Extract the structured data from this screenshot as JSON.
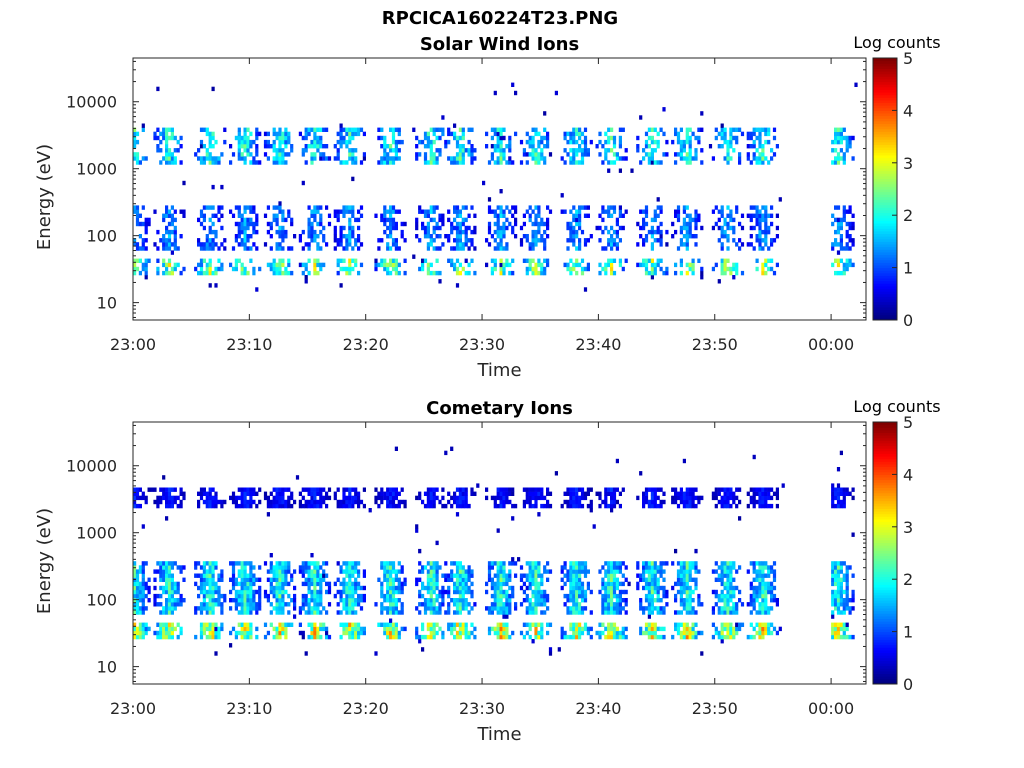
{
  "figure": {
    "title": "RPCICA160224T23.PNG"
  },
  "chart_data": [
    {
      "type": "heatmap",
      "title": "Solar Wind Ions",
      "xlabel": "Time",
      "ylabel": "Energy (eV)",
      "y_scale": "log",
      "ylim": [
        5.5,
        45000
      ],
      "x_range_minutes": [
        0,
        63
      ],
      "x_ticks": [
        {
          "label": "23:00",
          "minute": 0
        },
        {
          "label": "23:10",
          "minute": 10
        },
        {
          "label": "23:20",
          "minute": 20
        },
        {
          "label": "23:30",
          "minute": 30
        },
        {
          "label": "23:40",
          "minute": 40
        },
        {
          "label": "23:50",
          "minute": 50
        },
        {
          "label": "00:00",
          "minute": 60
        }
      ],
      "y_ticks": [
        {
          "label": "10",
          "value": 10
        },
        {
          "label": "100",
          "value": 100
        },
        {
          "label": "1000",
          "value": 1000
        },
        {
          "label": "10000",
          "value": 10000
        }
      ],
      "colorbar": {
        "label": "Log counts",
        "range": [
          0,
          5
        ],
        "ticks": [
          "0",
          "1",
          "2",
          "3",
          "4",
          "5"
        ],
        "colormap": "jet"
      },
      "data_gap_minutes": [
        56,
        60
      ],
      "bursts": [
        0,
        3,
        6.5,
        9.5,
        12.5,
        15.5,
        18.5,
        22,
        25.5,
        28,
        31.5,
        34.5,
        38,
        41,
        44.5,
        47.5,
        51,
        54,
        60.5
      ],
      "features": [
        {
          "energy_range_eV": [
            1200,
            4000
          ],
          "peak_log_counts": 2.2,
          "description": "high-energy solar wind band"
        },
        {
          "energy_range_eV": [
            60,
            300
          ],
          "peak_log_counts": 1.5
        },
        {
          "energy_range_eV": [
            25,
            45
          ],
          "peak_log_counts": 2.8
        }
      ]
    },
    {
      "type": "heatmap",
      "title": "Cometary Ions",
      "xlabel": "Time",
      "ylabel": "Energy (eV)",
      "y_scale": "log",
      "ylim": [
        5.5,
        45000
      ],
      "x_range_minutes": [
        0,
        63
      ],
      "x_ticks": [
        {
          "label": "23:00",
          "minute": 0
        },
        {
          "label": "23:10",
          "minute": 10
        },
        {
          "label": "23:20",
          "minute": 20
        },
        {
          "label": "23:30",
          "minute": 30
        },
        {
          "label": "23:40",
          "minute": 40
        },
        {
          "label": "23:50",
          "minute": 50
        },
        {
          "label": "00:00",
          "minute": 60
        }
      ],
      "y_ticks": [
        {
          "label": "10",
          "value": 10
        },
        {
          "label": "100",
          "value": 100
        },
        {
          "label": "1000",
          "value": 1000
        },
        {
          "label": "10000",
          "value": 10000
        }
      ],
      "colorbar": {
        "label": "Log counts",
        "range": [
          0,
          5
        ],
        "ticks": [
          "0",
          "1",
          "2",
          "3",
          "4",
          "5"
        ],
        "colormap": "jet"
      },
      "data_gap_minutes": [
        56,
        60
      ],
      "bursts": [
        0,
        3,
        6.5,
        9.5,
        12.5,
        15.5,
        18.5,
        22,
        25.5,
        28,
        31.5,
        34.5,
        38,
        41,
        44.5,
        47.5,
        51,
        54,
        60.5
      ],
      "features": [
        {
          "energy_range_eV": [
            60,
            400
          ],
          "peak_log_counts": 2.2
        },
        {
          "energy_range_eV": [
            25,
            45
          ],
          "peak_log_counts": 3.3
        },
        {
          "energy_range_eV": [
            2500,
            5000
          ],
          "peak_log_counts": 0.8
        }
      ]
    }
  ]
}
